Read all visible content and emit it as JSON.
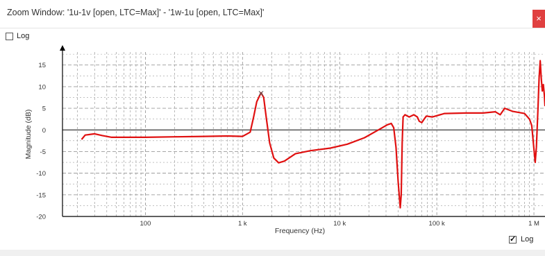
{
  "window": {
    "title": "Zoom Window: '1u-1v [open, LTC=Max]' - '1w-1u [open, LTC=Max]'",
    "close_glyph": "×"
  },
  "controls": {
    "log_y_label": "Log",
    "log_y_checked": false,
    "log_x_label": "Log",
    "log_x_checked": true
  },
  "colors": {
    "trace": "#e01010",
    "zero_line": "#606060",
    "grid": "#9a9a9a",
    "axis": "#000000"
  },
  "chart_data": {
    "type": "line",
    "xlabel": "Frequency (Hz)",
    "ylabel": "Magnitude (dB)",
    "x_scale": "log",
    "xlim": [
      14,
      1300000
    ],
    "ylim": [
      -20,
      18
    ],
    "x_ticks": [
      {
        "value": 100,
        "label": "100"
      },
      {
        "value": 1000,
        "label": "1 k"
      },
      {
        "value": 10000,
        "label": "10 k"
      },
      {
        "value": 100000,
        "label": "100 k"
      },
      {
        "value": 1000000,
        "label": "1 M"
      }
    ],
    "y_ticks": [
      15,
      10,
      5,
      0,
      -5,
      -10,
      -15,
      -20
    ],
    "grid": true,
    "marker": {
      "x": 1550,
      "y": 8.5,
      "symbol": "×"
    },
    "series": [
      {
        "values": [
          [
            22,
            -2.2
          ],
          [
            24,
            -1.2
          ],
          [
            30,
            -0.9
          ],
          [
            36,
            -1.3
          ],
          [
            45,
            -1.7
          ],
          [
            60,
            -1.7
          ],
          [
            100,
            -1.7
          ],
          [
            200,
            -1.6
          ],
          [
            400,
            -1.5
          ],
          [
            700,
            -1.4
          ],
          [
            1000,
            -1.5
          ],
          [
            1200,
            -0.5
          ],
          [
            1300,
            3
          ],
          [
            1400,
            6.5
          ],
          [
            1550,
            8.6
          ],
          [
            1650,
            7.5
          ],
          [
            1750,
            3
          ],
          [
            1900,
            -3
          ],
          [
            2100,
            -6.5
          ],
          [
            2350,
            -7.6
          ],
          [
            2700,
            -7.2
          ],
          [
            3500,
            -5.5
          ],
          [
            5000,
            -4.8
          ],
          [
            8000,
            -4.2
          ],
          [
            12000,
            -3.3
          ],
          [
            18000,
            -1.8
          ],
          [
            25000,
            0
          ],
          [
            31000,
            1.2
          ],
          [
            34000,
            1.5
          ],
          [
            36000,
            0.5
          ],
          [
            38000,
            -4
          ],
          [
            40000,
            -12
          ],
          [
            42000,
            -18
          ],
          [
            43000,
            -15
          ],
          [
            44000,
            -3
          ],
          [
            45000,
            3
          ],
          [
            47000,
            3.5
          ],
          [
            52000,
            3
          ],
          [
            58000,
            3.5
          ],
          [
            63000,
            3
          ],
          [
            66000,
            2
          ],
          [
            70000,
            1.7
          ],
          [
            74000,
            2.5
          ],
          [
            78000,
            3.2
          ],
          [
            90000,
            3
          ],
          [
            120000,
            3.8
          ],
          [
            200000,
            3.9
          ],
          [
            300000,
            3.9
          ],
          [
            400000,
            4.2
          ],
          [
            450000,
            3.5
          ],
          [
            500000,
            5
          ],
          [
            600000,
            4.3
          ],
          [
            800000,
            3.8
          ],
          [
            900000,
            2.5
          ],
          [
            950000,
            1
          ],
          [
            1010000,
            -5.5
          ],
          [
            1030000,
            -7.5
          ],
          [
            1060000,
            -4
          ],
          [
            1100000,
            5
          ],
          [
            1130000,
            12
          ],
          [
            1160000,
            16
          ],
          [
            1190000,
            12
          ],
          [
            1220000,
            9
          ],
          [
            1250000,
            10.5
          ],
          [
            1280000,
            8
          ],
          [
            1300000,
            5.5
          ]
        ]
      }
    ]
  }
}
